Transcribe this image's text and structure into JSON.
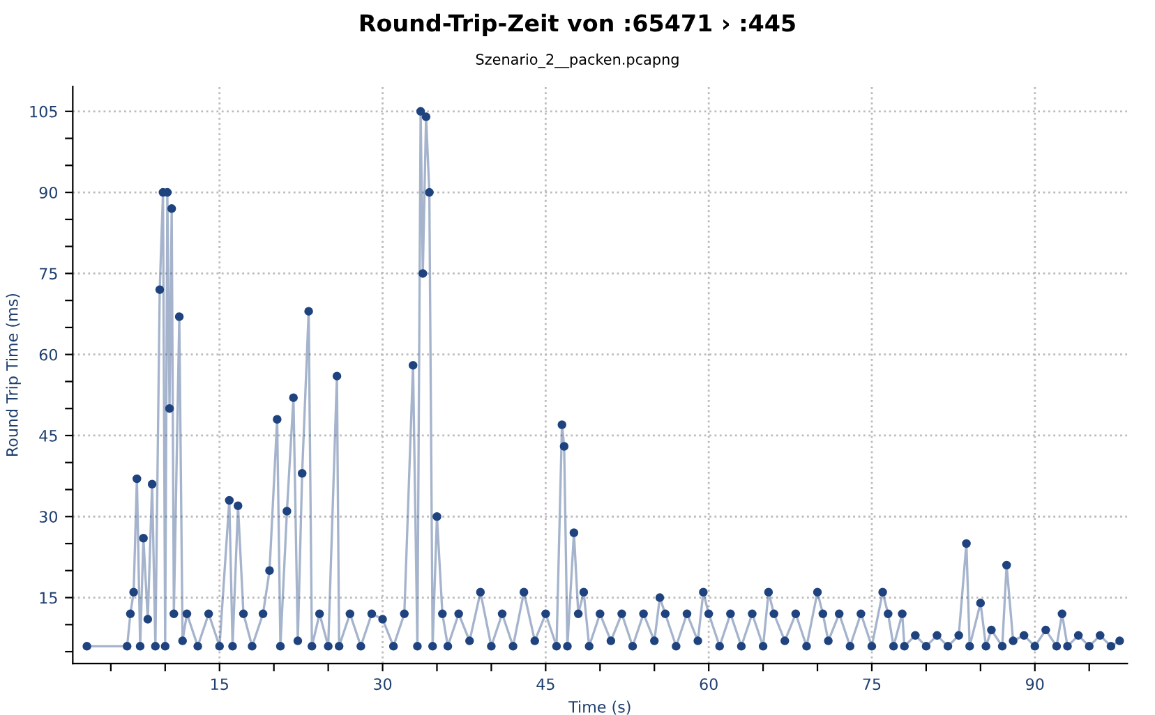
{
  "chart_data": {
    "type": "line",
    "title": "Round-Trip-Zeit von :65471 › :445",
    "subtitle": "Szenario_2__packen.pcapng",
    "xlabel": "Time (s)",
    "ylabel": "Round Trip Time (ms)",
    "xlim": [
      1.5,
      98.5
    ],
    "ylim": [
      2.8,
      109.6
    ],
    "xticks": [
      {
        "value": 5,
        "label": null
      },
      {
        "value": 10,
        "label": null
      },
      15,
      {
        "value": 20,
        "label": null
      },
      {
        "value": 25,
        "label": null
      },
      30,
      {
        "value": 35,
        "label": null
      },
      {
        "value": 40,
        "label": null
      },
      45,
      {
        "value": 50,
        "label": null
      },
      {
        "value": 55,
        "label": null
      },
      60,
      {
        "value": 65,
        "label": null
      },
      {
        "value": 70,
        "label": null
      },
      75,
      {
        "value": 80,
        "label": null
      },
      {
        "value": 85,
        "label": null
      },
      90,
      {
        "value": 95,
        "label": null
      }
    ],
    "yticks": [
      {
        "value": 5,
        "label": null
      },
      {
        "value": 10,
        "label": null
      },
      15,
      {
        "value": 20,
        "label": null
      },
      {
        "value": 25,
        "label": null
      },
      30,
      {
        "value": 35,
        "label": null
      },
      {
        "value": 40,
        "label": null
      },
      45,
      {
        "value": 50,
        "label": null
      },
      {
        "value": 55,
        "label": null
      },
      60,
      {
        "value": 65,
        "label": null
      },
      {
        "value": 70,
        "label": null
      },
      75,
      {
        "value": 80,
        "label": null
      },
      {
        "value": 85,
        "label": null
      },
      90,
      {
        "value": 95,
        "label": null
      },
      {
        "value": 100,
        "label": null
      },
      105
    ],
    "grid": true,
    "marker": "circle",
    "line_style": "solid",
    "series": [
      {
        "color": "#1f437f",
        "x": [
          2.8,
          6.5,
          6.8,
          7.1,
          7.4,
          7.7,
          8.0,
          8.4,
          8.8,
          9.1,
          9.5,
          9.8,
          10.0,
          10.2,
          10.4,
          10.6,
          10.8,
          11.3,
          11.6,
          12.0,
          13,
          14,
          15,
          15.9,
          16.2,
          16.7,
          17.2,
          18,
          19,
          19.6,
          20.3,
          20.6,
          21.2,
          21.8,
          22.2,
          22.6,
          23.2,
          23.5,
          24.2,
          25.0,
          25.8,
          26.0,
          27,
          28,
          29,
          30,
          31,
          32,
          32.8,
          33.2,
          33.5,
          33.7,
          34.0,
          34.3,
          34.6,
          35,
          35.5,
          36,
          37,
          38,
          39,
          40,
          41,
          42,
          43,
          44,
          45,
          46,
          46.5,
          46.7,
          47,
          47.6,
          48,
          48.5,
          49,
          50,
          51,
          52,
          53,
          54,
          55,
          55.5,
          56,
          57,
          58,
          59,
          59.5,
          60,
          61,
          62,
          63,
          64,
          65,
          65.5,
          66,
          67,
          68,
          69,
          70,
          70.5,
          71,
          72,
          73,
          74,
          75,
          76,
          76.5,
          77,
          77.8,
          78,
          79,
          80,
          81,
          82,
          83,
          83.7,
          84,
          85,
          85.5,
          86,
          87,
          87.4,
          88,
          89,
          90,
          91,
          92,
          92.5,
          93,
          94,
          95,
          96,
          97,
          97.8
        ],
        "values": [
          6,
          6,
          12,
          16,
          37,
          6,
          26,
          11,
          36,
          6,
          72,
          90,
          6,
          90,
          50,
          87,
          12,
          67,
          7,
          12,
          6,
          12,
          6,
          33,
          6,
          32,
          12,
          6,
          12,
          20,
          48,
          6,
          31,
          52,
          7,
          38,
          68,
          6,
          12,
          6,
          56,
          6,
          12,
          6,
          12,
          11,
          6,
          12,
          58,
          6,
          105,
          75,
          104,
          90,
          6,
          30,
          12,
          6,
          12,
          7,
          16,
          6,
          12,
          6,
          16,
          7,
          12,
          6,
          47,
          43,
          6,
          27,
          12,
          16,
          6,
          12,
          7,
          12,
          6,
          12,
          7,
          15,
          12,
          6,
          12,
          7,
          16,
          12,
          6,
          12,
          6,
          12,
          6,
          16,
          12,
          7,
          12,
          6,
          16,
          12,
          7,
          12,
          6,
          12,
          6,
          16,
          12,
          6,
          12,
          6,
          8,
          6,
          8,
          6,
          8,
          25,
          6,
          14,
          6,
          9,
          6,
          21,
          7,
          8,
          6,
          9,
          6,
          12,
          6,
          8,
          6,
          8,
          6,
          7
        ]
      }
    ]
  }
}
